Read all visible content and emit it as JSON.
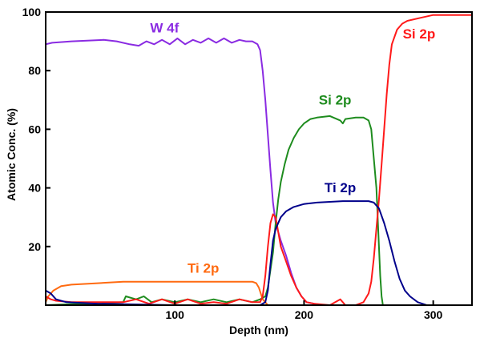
{
  "chart_data": {
    "type": "line",
    "title": "",
    "xlabel": "Depth (nm)",
    "ylabel": "Atomic Conc. (%)",
    "xlim": [
      0,
      330
    ],
    "ylim": [
      0,
      100
    ],
    "x_ticks": [
      100,
      200,
      300
    ],
    "y_ticks": [
      20,
      40,
      60,
      80,
      100
    ],
    "grid": false,
    "series": [
      {
        "name": "Ti 2p",
        "color": "#ff6a10",
        "points": [
          [
            0,
            1
          ],
          [
            2,
            3
          ],
          [
            6,
            5
          ],
          [
            12,
            6.5
          ],
          [
            20,
            7
          ],
          [
            40,
            7.5
          ],
          [
            60,
            8
          ],
          [
            100,
            8
          ],
          [
            140,
            8
          ],
          [
            160,
            8
          ],
          [
            163,
            7.5
          ],
          [
            165,
            6
          ],
          [
            168,
            2
          ],
          [
            172,
            0
          ]
        ]
      },
      {
        "name": "W 4f",
        "color": "#8a2be2",
        "points": [
          [
            0,
            89
          ],
          [
            5,
            89.5
          ],
          [
            20,
            90
          ],
          [
            45,
            90.5
          ],
          [
            55,
            90
          ],
          [
            65,
            89
          ],
          [
            72,
            88.5
          ],
          [
            78,
            90
          ],
          [
            84,
            89
          ],
          [
            90,
            90.5
          ],
          [
            96,
            89
          ],
          [
            102,
            91
          ],
          [
            108,
            89
          ],
          [
            114,
            90.5
          ],
          [
            120,
            89.5
          ],
          [
            126,
            91
          ],
          [
            132,
            89.5
          ],
          [
            138,
            91
          ],
          [
            144,
            89.5
          ],
          [
            150,
            90.5
          ],
          [
            155,
            90
          ],
          [
            160,
            90
          ],
          [
            164,
            89
          ],
          [
            166,
            87
          ],
          [
            168,
            80
          ],
          [
            170,
            70
          ],
          [
            172,
            58
          ],
          [
            174,
            46
          ],
          [
            176,
            35
          ],
          [
            178,
            28
          ],
          [
            182,
            22
          ],
          [
            186,
            17
          ],
          [
            190,
            11
          ],
          [
            194,
            6
          ],
          [
            198,
            3
          ],
          [
            202,
            1
          ],
          [
            208,
            0.5
          ],
          [
            215,
            0
          ]
        ]
      },
      {
        "name": "Si 2p",
        "color": "#1e8c1e",
        "points": [
          [
            0,
            0
          ],
          [
            60,
            1
          ],
          [
            62,
            3
          ],
          [
            70,
            2
          ],
          [
            76,
            3
          ],
          [
            82,
            1
          ],
          [
            90,
            2
          ],
          [
            100,
            1
          ],
          [
            110,
            2
          ],
          [
            120,
            1
          ],
          [
            130,
            2
          ],
          [
            140,
            1
          ],
          [
            150,
            2
          ],
          [
            160,
            1
          ],
          [
            166,
            2
          ],
          [
            170,
            3
          ],
          [
            172,
            6
          ],
          [
            174,
            12
          ],
          [
            176,
            18
          ],
          [
            178,
            28
          ],
          [
            180,
            36
          ],
          [
            182,
            42
          ],
          [
            185,
            48
          ],
          [
            188,
            53
          ],
          [
            192,
            57
          ],
          [
            196,
            60
          ],
          [
            200,
            62
          ],
          [
            205,
            63.5
          ],
          [
            210,
            64
          ],
          [
            220,
            64.5
          ],
          [
            228,
            63
          ],
          [
            230,
            62
          ],
          [
            232,
            63.5
          ],
          [
            240,
            64
          ],
          [
            246,
            64
          ],
          [
            250,
            63
          ],
          [
            252,
            60
          ],
          [
            254,
            50
          ],
          [
            256,
            40
          ],
          [
            257,
            30
          ],
          [
            258,
            20
          ],
          [
            259,
            10
          ],
          [
            260,
            3
          ],
          [
            261,
            0
          ]
        ]
      },
      {
        "name": "Si 2p",
        "color": "#ff1a1a",
        "points": [
          [
            0,
            3
          ],
          [
            4,
            2
          ],
          [
            8,
            1.5
          ],
          [
            20,
            1
          ],
          [
            40,
            1
          ],
          [
            60,
            1
          ],
          [
            70,
            2
          ],
          [
            80,
            0.5
          ],
          [
            90,
            2
          ],
          [
            100,
            0.5
          ],
          [
            110,
            2
          ],
          [
            120,
            0.5
          ],
          [
            130,
            1
          ],
          [
            140,
            0.5
          ],
          [
            150,
            2
          ],
          [
            160,
            1
          ],
          [
            166,
            1
          ],
          [
            168,
            3
          ],
          [
            170,
            10
          ],
          [
            172,
            20
          ],
          [
            174,
            28
          ],
          [
            176,
            31
          ],
          [
            178,
            30
          ],
          [
            180,
            25
          ],
          [
            182,
            20
          ],
          [
            186,
            15
          ],
          [
            190,
            10
          ],
          [
            194,
            6
          ],
          [
            198,
            3
          ],
          [
            202,
            1
          ],
          [
            208,
            0.5
          ],
          [
            220,
            0
          ],
          [
            228,
            2
          ],
          [
            232,
            0
          ],
          [
            240,
            0
          ],
          [
            246,
            1
          ],
          [
            250,
            4
          ],
          [
            252,
            8
          ],
          [
            254,
            16
          ],
          [
            256,
            26
          ],
          [
            258,
            36
          ],
          [
            260,
            48
          ],
          [
            262,
            60
          ],
          [
            264,
            72
          ],
          [
            266,
            82
          ],
          [
            268,
            89
          ],
          [
            272,
            94
          ],
          [
            276,
            96
          ],
          [
            280,
            97
          ],
          [
            290,
            98
          ],
          [
            300,
            99
          ],
          [
            330,
            99
          ]
        ]
      },
      {
        "name": "Ti 2p",
        "color": "#00008b",
        "points": [
          [
            0,
            5
          ],
          [
            4,
            4
          ],
          [
            8,
            2
          ],
          [
            16,
            1
          ],
          [
            40,
            0.5
          ],
          [
            100,
            0
          ],
          [
            150,
            0
          ],
          [
            166,
            0
          ],
          [
            170,
            1
          ],
          [
            172,
            5
          ],
          [
            174,
            14
          ],
          [
            176,
            22
          ],
          [
            178,
            26
          ],
          [
            182,
            30
          ],
          [
            186,
            32
          ],
          [
            192,
            33.5
          ],
          [
            200,
            34.5
          ],
          [
            210,
            35
          ],
          [
            230,
            35.5
          ],
          [
            250,
            35.5
          ],
          [
            254,
            35
          ],
          [
            258,
            33
          ],
          [
            262,
            28
          ],
          [
            266,
            22
          ],
          [
            270,
            15
          ],
          [
            274,
            9
          ],
          [
            278,
            5
          ],
          [
            282,
            3
          ],
          [
            288,
            1
          ],
          [
            295,
            0
          ]
        ]
      }
    ],
    "labels": [
      {
        "text": "W 4f",
        "color": "#8a2be2",
        "x": 92,
        "y": 93
      },
      {
        "text": "Si 2p",
        "color": "#ff1a1a",
        "x": 289,
        "y": 91
      },
      {
        "text": "Si 2p",
        "color": "#1e8c1e",
        "x": 224,
        "y": 68.5
      },
      {
        "text": "Ti 2p",
        "color": "#00008b",
        "x": 228,
        "y": 38.5
      },
      {
        "text": "Ti 2p",
        "color": "#ff6a10",
        "x": 122,
        "y": 11
      }
    ]
  }
}
